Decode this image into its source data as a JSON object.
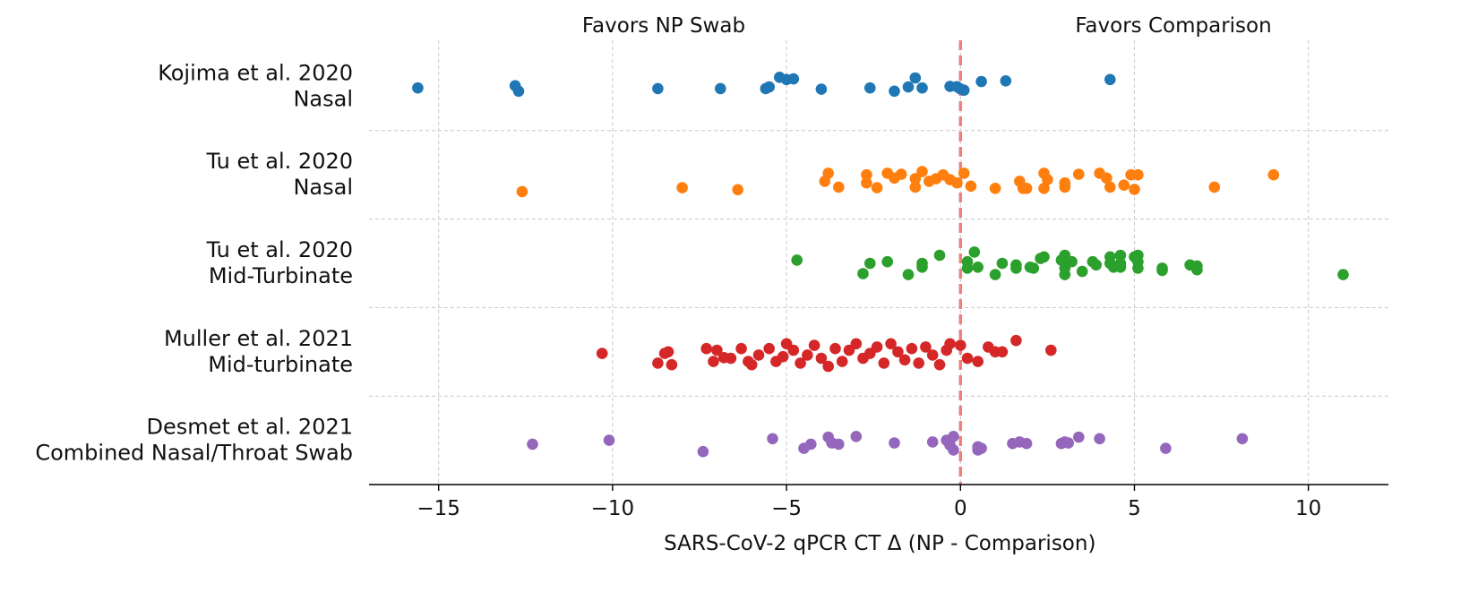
{
  "chart_data": {
    "type": "scatter",
    "title": "",
    "xlabel": "SARS-CoV-2 qPCR CT Δ (NP - Comparison)",
    "ylabel": "",
    "xlim": [
      -17,
      12.3
    ],
    "x_ticks": [
      -15,
      -10,
      -5,
      0,
      5,
      10
    ],
    "x_tick_labels": [
      "−15",
      "−10",
      "−5",
      "0",
      "5",
      "10"
    ],
    "grid": true,
    "reference_line": {
      "x": 0,
      "style": "dashed",
      "color": "#f08080"
    },
    "annotations": {
      "left": "Favors NP Swab",
      "right": "Favors Comparison"
    },
    "rows": [
      {
        "line1": "Kojima et al. 2020",
        "line2": "Nasal",
        "color": "#1f77b4",
        "points": [
          [
            -15.6,
            -0.05
          ],
          [
            -12.8,
            0.02
          ],
          [
            -12.7,
            -0.15
          ],
          [
            -8.7,
            -0.07
          ],
          [
            -6.9,
            -0.07
          ],
          [
            -5.6,
            -0.07
          ],
          [
            -5.5,
            -0.02
          ],
          [
            -5.2,
            0.28
          ],
          [
            -5.0,
            0.21
          ],
          [
            -4.8,
            0.23
          ],
          [
            -4.0,
            -0.09
          ],
          [
            -2.6,
            -0.05
          ],
          [
            -1.9,
            -0.15
          ],
          [
            -1.5,
            -0.02
          ],
          [
            -1.3,
            0.26
          ],
          [
            -1.1,
            -0.05
          ],
          [
            -0.3,
            0.0
          ],
          [
            -0.1,
            -0.01
          ],
          [
            0.0,
            -0.08
          ],
          [
            0.1,
            -0.12
          ],
          [
            0.6,
            0.15
          ],
          [
            1.3,
            0.17
          ],
          [
            4.3,
            0.21
          ]
        ]
      },
      {
        "line1": "Tu et al. 2020",
        "line2": "Nasal",
        "color": "#ff7f0e",
        "points": [
          [
            -12.6,
            -0.52
          ],
          [
            -8.0,
            -0.4
          ],
          [
            -6.4,
            -0.46
          ],
          [
            -3.8,
            0.05
          ],
          [
            -3.9,
            -0.2
          ],
          [
            -3.5,
            -0.38
          ],
          [
            -2.7,
            0.0
          ],
          [
            -2.7,
            -0.25
          ],
          [
            -2.4,
            -0.4
          ],
          [
            -2.1,
            0.05
          ],
          [
            -1.9,
            -0.1
          ],
          [
            -1.7,
            0.02
          ],
          [
            -1.3,
            -0.12
          ],
          [
            -1.3,
            -0.38
          ],
          [
            -1.1,
            0.1
          ],
          [
            -0.9,
            -0.2
          ],
          [
            -0.7,
            -0.12
          ],
          [
            -0.5,
            0.0
          ],
          [
            -0.3,
            -0.15
          ],
          [
            -0.1,
            -0.25
          ],
          [
            0.1,
            0.05
          ],
          [
            0.3,
            -0.35
          ],
          [
            1.0,
            -0.42
          ],
          [
            1.7,
            -0.2
          ],
          [
            1.8,
            -0.42
          ],
          [
            1.9,
            -0.42
          ],
          [
            2.4,
            0.05
          ],
          [
            2.5,
            -0.15
          ],
          [
            2.4,
            -0.42
          ],
          [
            3.0,
            -0.25
          ],
          [
            3.0,
            -0.38
          ],
          [
            3.4,
            0.02
          ],
          [
            4.0,
            0.05
          ],
          [
            4.2,
            -0.1
          ],
          [
            4.3,
            -0.38
          ],
          [
            4.7,
            -0.32
          ],
          [
            4.9,
            0.0
          ],
          [
            5.1,
            0.0
          ],
          [
            5.0,
            -0.45
          ],
          [
            7.3,
            -0.38
          ],
          [
            9.0,
            0.0
          ]
        ]
      },
      {
        "line1": "Tu et al. 2020",
        "line2": "Mid-Turbinate",
        "color": "#2ca02c",
        "points": [
          [
            -4.7,
            0.1
          ],
          [
            -2.8,
            -0.32
          ],
          [
            -2.6,
            0.0
          ],
          [
            -2.1,
            0.05
          ],
          [
            -1.5,
            -0.35
          ],
          [
            -1.1,
            0.0
          ],
          [
            -1.1,
            -0.12
          ],
          [
            -0.6,
            0.25
          ],
          [
            0.2,
            0.05
          ],
          [
            0.4,
            0.35
          ],
          [
            0.2,
            -0.15
          ],
          [
            0.5,
            -0.12
          ],
          [
            1.0,
            -0.35
          ],
          [
            1.2,
            0.0
          ],
          [
            1.6,
            -0.05
          ],
          [
            1.6,
            -0.15
          ],
          [
            2.0,
            -0.12
          ],
          [
            2.1,
            -0.15
          ],
          [
            2.3,
            0.15
          ],
          [
            2.4,
            0.2
          ],
          [
            2.9,
            0.1
          ],
          [
            3.0,
            0.25
          ],
          [
            3.0,
            -0.15
          ],
          [
            3.0,
            -0.35
          ],
          [
            3.2,
            0.05
          ],
          [
            3.5,
            -0.25
          ],
          [
            3.8,
            0.05
          ],
          [
            3.9,
            -0.05
          ],
          [
            4.3,
            0.2
          ],
          [
            4.3,
            0.0
          ],
          [
            4.4,
            -0.12
          ],
          [
            4.6,
            0.25
          ],
          [
            4.6,
            0.0
          ],
          [
            4.6,
            -0.12
          ],
          [
            5.0,
            0.2
          ],
          [
            5.1,
            0.25
          ],
          [
            5.1,
            0.05
          ],
          [
            5.1,
            -0.15
          ],
          [
            5.8,
            -0.15
          ],
          [
            5.8,
            -0.22
          ],
          [
            6.6,
            -0.05
          ],
          [
            6.8,
            -0.08
          ],
          [
            6.8,
            -0.2
          ],
          [
            11.0,
            -0.35
          ]
        ]
      },
      {
        "line1": "Muller et al. 2021",
        "line2": "Mid-turbinate",
        "color": "#d62728",
        "points": [
          [
            -10.3,
            -0.05
          ],
          [
            -8.7,
            -0.35
          ],
          [
            -8.5,
            -0.05
          ],
          [
            -8.4,
            0.0
          ],
          [
            -8.3,
            -0.4
          ],
          [
            -7.3,
            0.1
          ],
          [
            -7.1,
            -0.3
          ],
          [
            -7.0,
            0.05
          ],
          [
            -6.8,
            -0.18
          ],
          [
            -6.6,
            -0.2
          ],
          [
            -6.3,
            0.1
          ],
          [
            -6.1,
            -0.3
          ],
          [
            -6.0,
            -0.4
          ],
          [
            -5.8,
            -0.1
          ],
          [
            -5.5,
            0.1
          ],
          [
            -5.3,
            -0.3
          ],
          [
            -5.1,
            -0.15
          ],
          [
            -5.0,
            0.25
          ],
          [
            -4.8,
            0.05
          ],
          [
            -4.6,
            -0.35
          ],
          [
            -4.4,
            -0.1
          ],
          [
            -4.2,
            0.2
          ],
          [
            -4.0,
            -0.2
          ],
          [
            -3.8,
            -0.45
          ],
          [
            -3.6,
            0.1
          ],
          [
            -3.4,
            -0.3
          ],
          [
            -3.2,
            0.05
          ],
          [
            -3.0,
            0.25
          ],
          [
            -2.8,
            -0.2
          ],
          [
            -2.6,
            -0.05
          ],
          [
            -2.4,
            0.15
          ],
          [
            -2.2,
            -0.35
          ],
          [
            -2.0,
            0.25
          ],
          [
            -1.8,
            0.0
          ],
          [
            -1.6,
            -0.25
          ],
          [
            -1.4,
            0.1
          ],
          [
            -1.2,
            -0.35
          ],
          [
            -1.0,
            0.15
          ],
          [
            -0.8,
            -0.1
          ],
          [
            -0.6,
            -0.4
          ],
          [
            -0.4,
            0.05
          ],
          [
            -0.3,
            0.25
          ],
          [
            0.0,
            0.2
          ],
          [
            0.2,
            -0.2
          ],
          [
            0.5,
            -0.3
          ],
          [
            0.8,
            0.15
          ],
          [
            1.0,
            0.0
          ],
          [
            1.2,
            0.0
          ],
          [
            1.6,
            0.35
          ],
          [
            2.6,
            0.05
          ]
        ]
      },
      {
        "line1": "Desmet et al. 2021",
        "line2": "Combined Nasal/Throat Swab",
        "color": "#9467bd",
        "points": [
          [
            -12.3,
            -0.12
          ],
          [
            -10.1,
            0.0
          ],
          [
            -7.4,
            -0.35
          ],
          [
            -5.4,
            0.05
          ],
          [
            -4.3,
            -0.12
          ],
          [
            -4.5,
            -0.25
          ],
          [
            -3.8,
            0.1
          ],
          [
            -3.7,
            -0.08
          ],
          [
            -3.5,
            -0.12
          ],
          [
            -3.0,
            0.12
          ],
          [
            -1.9,
            -0.08
          ],
          [
            -0.8,
            -0.05
          ],
          [
            -0.4,
            0.0
          ],
          [
            -0.3,
            -0.15
          ],
          [
            -0.2,
            -0.3
          ],
          [
            -0.2,
            0.12
          ],
          [
            0.5,
            -0.2
          ],
          [
            0.5,
            -0.3
          ],
          [
            0.6,
            -0.25
          ],
          [
            1.5,
            -0.1
          ],
          [
            1.7,
            -0.05
          ],
          [
            1.9,
            -0.1
          ],
          [
            2.9,
            -0.1
          ],
          [
            3.0,
            -0.05
          ],
          [
            3.1,
            -0.08
          ],
          [
            3.4,
            0.1
          ],
          [
            4.0,
            0.05
          ],
          [
            5.9,
            -0.25
          ],
          [
            8.1,
            0.05
          ]
        ]
      }
    ]
  }
}
